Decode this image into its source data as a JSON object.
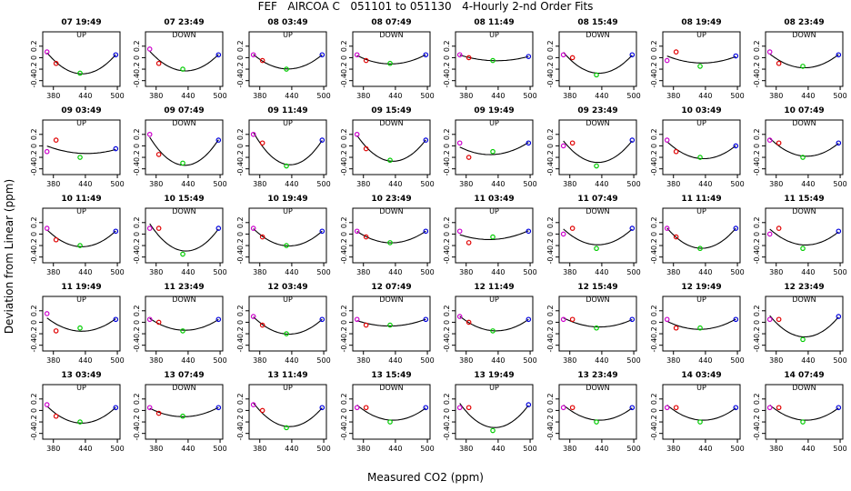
{
  "title": "FEF   AIRCOA C   051101 to 051130   4-Hourly 2-nd Order Fits",
  "chart_data": {
    "type": "scatter",
    "title": "FEF   AIRCOA C   051101 to 051130   4-Hourly 2-nd Order Fits",
    "xlabel": "Measured CO2 (ppm)",
    "ylabel": "Deviation from Linear (ppm)",
    "xlim": [
      360,
      505
    ],
    "ylim": [
      -0.5,
      0.45
    ],
    "xticks": [
      380,
      440,
      500
    ],
    "yticks": [
      -0.4,
      -0.2,
      0.0,
      0.2
    ],
    "ytick_labels": [
      "-0.4",
      "-0.2",
      "0",
      "0.2"
    ],
    "grid": false,
    "point_colors": [
      "#cc00cc",
      "#e00000",
      "#00cc00",
      "#0000dd"
    ],
    "point_x": [
      368,
      385,
      430,
      497
    ],
    "fit_color": "#000000",
    "panels": [
      {
        "label": "07 19:49",
        "dir": "UP",
        "y": [
          0.1,
          -0.1,
          -0.27,
          0.05
        ]
      },
      {
        "label": "07 23:49",
        "dir": "DOWN",
        "y": [
          0.15,
          -0.1,
          -0.2,
          0.05
        ]
      },
      {
        "label": "08 03:49",
        "dir": "UP",
        "y": [
          0.05,
          -0.05,
          -0.2,
          0.05
        ]
      },
      {
        "label": "08 07:49",
        "dir": "DOWN",
        "y": [
          0.05,
          -0.05,
          -0.1,
          0.05
        ]
      },
      {
        "label": "08 11:49",
        "dir": "UP",
        "y": [
          0.05,
          0.0,
          -0.05,
          0.02
        ]
      },
      {
        "label": "08 15:49",
        "dir": "DOWN",
        "y": [
          0.05,
          0.0,
          -0.3,
          0.05
        ]
      },
      {
        "label": "08 19:49",
        "dir": "UP",
        "y": [
          -0.05,
          0.1,
          -0.15,
          0.03
        ]
      },
      {
        "label": "08 23:49",
        "dir": "DOWN",
        "y": [
          0.1,
          -0.1,
          -0.15,
          0.05
        ]
      },
      {
        "label": "09 03:49",
        "dir": "UP",
        "y": [
          -0.1,
          0.1,
          -0.2,
          -0.05
        ]
      },
      {
        "label": "09 07:49",
        "dir": "DOWN",
        "y": [
          0.2,
          -0.15,
          -0.3,
          0.1
        ]
      },
      {
        "label": "09 11:49",
        "dir": "UP",
        "y": [
          0.2,
          0.05,
          -0.35,
          0.1
        ]
      },
      {
        "label": "09 15:49",
        "dir": "DOWN",
        "y": [
          0.2,
          -0.05,
          -0.25,
          0.1
        ]
      },
      {
        "label": "09 19:49",
        "dir": "UP",
        "y": [
          0.05,
          -0.2,
          -0.1,
          0.05
        ]
      },
      {
        "label": "09 23:49",
        "dir": "DOWN",
        "y": [
          0.0,
          0.05,
          -0.35,
          0.1
        ]
      },
      {
        "label": "10 03:49",
        "dir": "UP",
        "y": [
          0.1,
          -0.1,
          -0.2,
          0.0
        ]
      },
      {
        "label": "10 07:49",
        "dir": "DOWN",
        "y": [
          0.1,
          0.05,
          -0.2,
          0.05
        ]
      },
      {
        "label": "10 11:49",
        "dir": "UP",
        "y": [
          0.1,
          -0.1,
          -0.2,
          0.05
        ]
      },
      {
        "label": "10 15:49",
        "dir": "DOWN",
        "y": [
          0.1,
          0.1,
          -0.35,
          0.1
        ]
      },
      {
        "label": "10 19:49",
        "dir": "UP",
        "y": [
          0.1,
          -0.05,
          -0.2,
          0.05
        ]
      },
      {
        "label": "10 23:49",
        "dir": "DOWN",
        "y": [
          0.05,
          -0.05,
          -0.15,
          0.05
        ]
      },
      {
        "label": "11 03:49",
        "dir": "UP",
        "y": [
          0.05,
          -0.15,
          -0.05,
          0.05
        ]
      },
      {
        "label": "11 07:49",
        "dir": "DOWN",
        "y": [
          0.0,
          0.1,
          -0.25,
          0.1
        ]
      },
      {
        "label": "11 11:49",
        "dir": "UP",
        "y": [
          0.1,
          -0.05,
          -0.25,
          0.1
        ]
      },
      {
        "label": "11 15:49",
        "dir": "DOWN",
        "y": [
          0.0,
          0.1,
          -0.25,
          0.05
        ]
      },
      {
        "label": "11 19:49",
        "dir": "UP",
        "y": [
          0.15,
          -0.15,
          -0.1,
          0.05
        ]
      },
      {
        "label": "11 23:49",
        "dir": "DOWN",
        "y": [
          0.05,
          0.0,
          -0.15,
          0.05
        ]
      },
      {
        "label": "12 03:49",
        "dir": "UP",
        "y": [
          0.1,
          -0.05,
          -0.2,
          0.05
        ]
      },
      {
        "label": "12 07:49",
        "dir": "DOWN",
        "y": [
          0.05,
          -0.05,
          -0.05,
          0.05
        ]
      },
      {
        "label": "12 11:49",
        "dir": "UP",
        "y": [
          0.1,
          0.0,
          -0.15,
          0.05
        ]
      },
      {
        "label": "12 15:49",
        "dir": "DOWN",
        "y": [
          0.05,
          0.05,
          -0.1,
          0.05
        ]
      },
      {
        "label": "12 19:49",
        "dir": "UP",
        "y": [
          0.05,
          -0.1,
          -0.1,
          0.05
        ]
      },
      {
        "label": "12 23:49",
        "dir": "DOWN",
        "y": [
          0.05,
          0.05,
          -0.3,
          0.1
        ]
      },
      {
        "label": "13 03:49",
        "dir": "UP",
        "y": [
          0.1,
          -0.1,
          -0.2,
          0.05
        ]
      },
      {
        "label": "13 07:49",
        "dir": "DOWN",
        "y": [
          0.05,
          -0.05,
          -0.1,
          0.05
        ]
      },
      {
        "label": "13 11:49",
        "dir": "UP",
        "y": [
          0.1,
          0.0,
          -0.3,
          0.05
        ]
      },
      {
        "label": "13 15:49",
        "dir": "DOWN",
        "y": [
          0.05,
          0.05,
          -0.2,
          0.05
        ]
      },
      {
        "label": "13 19:49",
        "dir": "UP",
        "y": [
          0.05,
          0.05,
          -0.35,
          0.1
        ]
      },
      {
        "label": "13 23:49",
        "dir": "DOWN",
        "y": [
          0.05,
          0.05,
          -0.2,
          0.05
        ]
      },
      {
        "label": "14 03:49",
        "dir": "UP",
        "y": [
          0.05,
          0.05,
          -0.2,
          0.05
        ]
      },
      {
        "label": "14 07:49",
        "dir": "DOWN",
        "y": [
          0.05,
          0.05,
          -0.2,
          0.05
        ]
      }
    ]
  }
}
